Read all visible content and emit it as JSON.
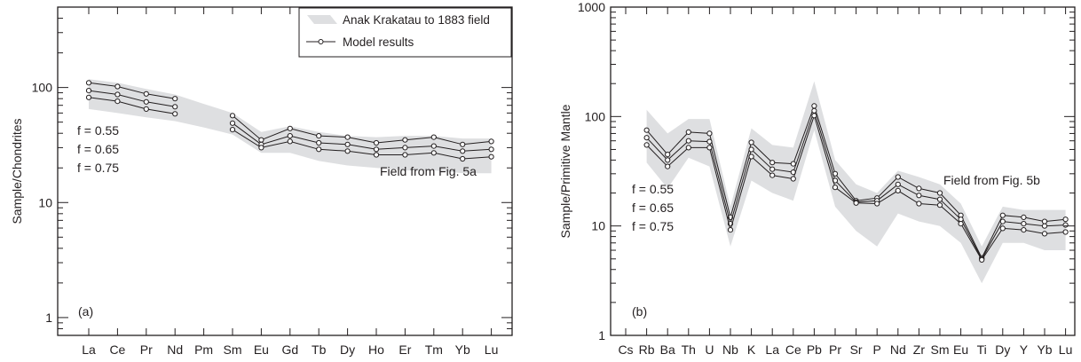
{
  "chart_data": [
    {
      "type": "line",
      "panel_label": "(a)",
      "ylabel": "Sample/Chondrites",
      "yscale": "log",
      "ylim": [
        0.7,
        500
      ],
      "yticks": [
        "1",
        "10",
        "100"
      ],
      "categories": [
        "La",
        "Ce",
        "Pr",
        "Nd",
        "Pm",
        "Sm",
        "Eu",
        "Gd",
        "Tb",
        "Dy",
        "Ho",
        "Er",
        "Tm",
        "Yb",
        "Lu"
      ],
      "legend": {
        "placement": "top-right",
        "field_label": "Anak Krakatau to 1883 field",
        "model_label": "Model results"
      },
      "annotations": {
        "f_labels": [
          "f = 0.55",
          "f = 0.65",
          "f = 0.75"
        ],
        "field_note": "Field from Fig. 5a"
      },
      "series": [
        {
          "f": 0.55,
          "values": [
            110,
            102,
            88,
            80,
            null,
            57,
            35,
            44,
            38,
            37,
            33,
            35,
            37,
            32,
            34
          ]
        },
        {
          "f": 0.65,
          "values": [
            94,
            87,
            75,
            68,
            null,
            49,
            32,
            38,
            33,
            32,
            29,
            30,
            31,
            28,
            29
          ]
        },
        {
          "f": 0.75,
          "values": [
            82,
            76,
            65,
            59,
            null,
            43,
            30,
            34,
            29,
            28,
            26,
            26,
            27,
            24,
            25
          ]
        }
      ],
      "field": {
        "upper": [
          118,
          110,
          97,
          87,
          72,
          60,
          41,
          46,
          41,
          38,
          37,
          38,
          38,
          36,
          36
        ],
        "lower": [
          65,
          60,
          55,
          51,
          45,
          39,
          27,
          27,
          23,
          21,
          20,
          19,
          19,
          18,
          18
        ]
      },
      "grid": false,
      "colors": {
        "field": "#dedfe1",
        "line": "#231f20"
      }
    },
    {
      "type": "line",
      "panel_label": "(b)",
      "ylabel": "Sample/Primitive Mantle",
      "yscale": "log",
      "ylim": [
        1,
        1000
      ],
      "yticks": [
        "1",
        "10",
        "100",
        "1000"
      ],
      "categories": [
        "Cs",
        "Rb",
        "Ba",
        "Th",
        "U",
        "Nb",
        "K",
        "La",
        "Ce",
        "Pb",
        "Pr",
        "Sr",
        "P",
        "Nd",
        "Zr",
        "Sm",
        "Eu",
        "Ti",
        "Dy",
        "Y",
        "Yb",
        "Lu"
      ],
      "annotations": {
        "f_labels": [
          "f = 0.55",
          "f = 0.65",
          "f = 0.75"
        ],
        "field_note": "Field from Fig. 5b"
      },
      "series": [
        {
          "f": 0.55,
          "values": [
            null,
            75,
            45,
            72,
            70,
            12,
            58,
            38,
            37,
            125,
            30,
            17,
            18,
            28,
            22,
            20,
            12.5,
            5.1,
            12.5,
            12,
            11,
            11.5
          ]
        },
        {
          "f": 0.65,
          "values": [
            null,
            64,
            40,
            60,
            59,
            10.5,
            50,
            33,
            31,
            113,
            26,
            16.5,
            17,
            24,
            19,
            17.5,
            11.5,
            5,
            11,
            10.5,
            10,
            10.2
          ]
        },
        {
          "f": 0.75,
          "values": [
            null,
            55,
            35,
            52,
            52,
            9.2,
            43,
            29,
            27,
            102,
            22.5,
            16.2,
            16,
            21,
            16,
            15.5,
            10.5,
            4.9,
            9.5,
            9.2,
            8.5,
            8.8
          ]
        }
      ],
      "field": {
        "upper": [
          null,
          115,
          70,
          95,
          95,
          15,
          78,
          55,
          52,
          210,
          40,
          24,
          20,
          32,
          28,
          24,
          16,
          6.5,
          15,
          14,
          14,
          14
        ],
        "lower": [
          null,
          38,
          22,
          42,
          35,
          6.5,
          26,
          20,
          17,
          75,
          15,
          9,
          6.5,
          13,
          11,
          10,
          7,
          3,
          7,
          7,
          6,
          6
        ]
      },
      "grid": false,
      "colors": {
        "field": "#dedfe1",
        "line": "#231f20"
      }
    }
  ]
}
